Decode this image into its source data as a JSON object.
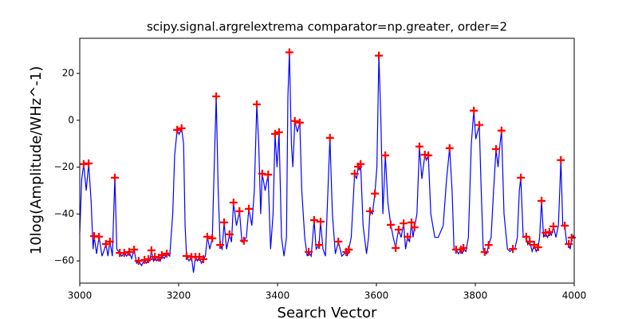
{
  "chart_data": {
    "type": "line",
    "title": "scipy.signal.argrelextrema comparator=np.greater, order=2",
    "x_label": "Search Vector",
    "y_label": "10log(Amplitude/WHz^-1)",
    "xlim": [
      3000,
      4000
    ],
    "ylim": [
      -69.5,
      35
    ],
    "xticks": [
      3000,
      3200,
      3400,
      3600,
      3800,
      4000
    ],
    "yticks": [
      {
        "value": -60,
        "label": "−60"
      },
      {
        "value": -40,
        "label": "−40"
      },
      {
        "value": -20,
        "label": "−20"
      },
      0,
      20
    ],
    "series": [
      {
        "type": "line",
        "color": "#0000ff",
        "x": [
          3000,
          3004,
          3008,
          3013,
          3018,
          3023,
          3027,
          3029,
          3034,
          3039,
          3045,
          3050,
          3053,
          3057,
          3061,
          3066,
          3071,
          3075,
          3081,
          3085,
          3090,
          3095,
          3100,
          3105,
          3110,
          3115,
          3119,
          3125,
          3131,
          3135,
          3139,
          3142,
          3145,
          3149,
          3152,
          3156,
          3160,
          3163,
          3166,
          3171,
          3176,
          3182,
          3188,
          3192,
          3197,
          3201,
          3206,
          3210,
          3213,
          3216,
          3221,
          3226,
          3230,
          3234,
          3238,
          3242,
          3246,
          3250,
          3254,
          3258,
          3263,
          3268,
          3272,
          3276,
          3280,
          3284,
          3288,
          3292,
          3297,
          3303,
          3307,
          3311,
          3317,
          3323,
          3328,
          3332,
          3337,
          3342,
          3348,
          3353,
          3358,
          3362,
          3366,
          3369,
          3375,
          3381,
          3386,
          3391,
          3395,
          3399,
          3403,
          3408,
          3413,
          3418,
          3421,
          3424,
          3428,
          3431,
          3435,
          3440,
          3445,
          3449,
          3455,
          3460,
          3463,
          3468,
          3474,
          3478,
          3484,
          3487,
          3492,
          3497,
          3502,
          3506,
          3511,
          3517,
          3523,
          3530,
          3539,
          3541,
          3544,
          3549,
          3556,
          3560,
          3563,
          3566,
          3568,
          3573,
          3580,
          3584,
          3587,
          3592,
          3597,
          3601,
          3605,
          3609,
          3613,
          3618,
          3623,
          3629,
          3634,
          3639,
          3642,
          3645,
          3650,
          3655,
          3659,
          3663,
          3667,
          3671,
          3674,
          3677,
          3682,
          3687,
          3692,
          3698,
          3701,
          3705,
          3710,
          3718,
          3725,
          3735,
          3742,
          3748,
          3753,
          3757,
          3761,
          3766,
          3771,
          3774,
          3776,
          3781,
          3786,
          3792,
          3797,
          3801,
          3808,
          3812,
          3816,
          3819,
          3823,
          3827,
          3832,
          3837,
          3842,
          3846,
          3850,
          3853,
          3858,
          3865,
          3870,
          3876,
          3880,
          3885,
          3889,
          3892,
          3897,
          3903,
          3906,
          3910,
          3915,
          3919,
          3923,
          3927,
          3930,
          3934,
          3938,
          3942,
          3946,
          3950,
          3954,
          3958,
          3963,
          3968,
          3973,
          3977,
          3981,
          3985,
          3989,
          3992,
          3995,
          4000
        ],
        "values": [
          -48,
          -25,
          -18.7,
          -30,
          -18.4,
          -35,
          -55,
          -49.4,
          -57,
          -49.7,
          -58,
          -55,
          -52.8,
          -58,
          -51.8,
          -58,
          -24.5,
          -55,
          -56.6,
          -58,
          -56.6,
          -58,
          -56.2,
          -59,
          -55.2,
          -61,
          -60,
          -62,
          -59.6,
          -61,
          -59.3,
          -60,
          -55.5,
          -60,
          -58.3,
          -60,
          -58.6,
          -60,
          -57.6,
          -59,
          -56.9,
          -58,
          -40,
          -15,
          -4.1,
          -6,
          -3.4,
          -10,
          -45,
          -57.9,
          -60,
          -58.3,
          -65,
          -58.3,
          -60,
          -58.3,
          -61,
          -59.3,
          -58,
          -49.7,
          -55,
          -50.4,
          -20,
          10.2,
          -30,
          -53.2,
          -55,
          -43.6,
          -55,
          -48.7,
          -52,
          -35.1,
          -45,
          -38.8,
          -52,
          -51.4,
          -50,
          -37.8,
          -45,
          -30,
          6.8,
          -10,
          -40,
          -22.8,
          -30,
          -23.2,
          -55,
          -40,
          -5.8,
          -20,
          -5.1,
          -50,
          -58,
          -50,
          10,
          29,
          -10,
          -20,
          -0.3,
          -5,
          -1,
          -30,
          -50,
          -58,
          -56.2,
          -58,
          -42.6,
          -55,
          -53.2,
          -43.3,
          -55,
          -58,
          -30,
          -7.5,
          -40,
          -57,
          -51.8,
          -58,
          -56.2,
          -58,
          -55.2,
          -50,
          -22.8,
          -25,
          -19.8,
          -21,
          -18.7,
          -45,
          -57,
          -50,
          -38.8,
          -40,
          -31.3,
          -20,
          27.6,
          0,
          -40,
          -15,
          -35,
          -44.6,
          -50,
          -54.5,
          -50,
          -46.7,
          -50,
          -44,
          -55,
          -49.7,
          -52,
          -43.6,
          -50,
          -45.7,
          -40,
          -11.2,
          -25,
          -14.7,
          -17,
          -15,
          -40,
          -50,
          -50,
          -45,
          -25,
          -11.9,
          -30,
          -55,
          -55.2,
          -57,
          -55.2,
          -57,
          -54.5,
          -56,
          -50,
          -10,
          4.1,
          -8,
          -2,
          -30,
          -55,
          -56.2,
          -57,
          -53.2,
          -50,
          -30,
          -12.3,
          -20,
          -10,
          -4.4,
          -40,
          -55,
          -56,
          -54.9,
          -55,
          -50,
          -30,
          -24.5,
          -50,
          -49.7,
          -53,
          -51.8,
          -56,
          -53.2,
          -56,
          -54.2,
          -50,
          -34.4,
          -50,
          -48,
          -50,
          -47.7,
          -49,
          -45.3,
          -50,
          -45,
          -17,
          -45,
          -45,
          -53,
          -52.8,
          -55,
          -50.1,
          -49
        ]
      },
      {
        "type": "scatter",
        "color": "#ff0000",
        "x": [
          3008,
          3018,
          3029,
          3039,
          3053,
          3061,
          3071,
          3081,
          3090,
          3100,
          3110,
          3119,
          3131,
          3139,
          3145,
          3152,
          3160,
          3166,
          3176,
          3197,
          3206,
          3216,
          3226,
          3234,
          3242,
          3250,
          3258,
          3268,
          3276,
          3284,
          3292,
          3303,
          3311,
          3323,
          3332,
          3342,
          3358,
          3369,
          3381,
          3395,
          3403,
          3424,
          3435,
          3445,
          3463,
          3474,
          3484,
          3487,
          3506,
          3523,
          3539,
          3544,
          3556,
          3563,
          3568,
          3587,
          3597,
          3605,
          3618,
          3629,
          3639,
          3645,
          3655,
          3663,
          3671,
          3677,
          3687,
          3698,
          3705,
          3748,
          3761,
          3771,
          3776,
          3797,
          3808,
          3819,
          3827,
          3842,
          3853,
          3876,
          3892,
          3903,
          3910,
          3919,
          3927,
          3934,
          3942,
          3950,
          3958,
          3973,
          3981,
          3989,
          3995
        ],
        "values": [
          -18.7,
          -18.4,
          -49.4,
          -49.7,
          -52.8,
          -51.8,
          -24.5,
          -56.6,
          -56.6,
          -56.2,
          -55.2,
          -60,
          -59.6,
          -59.3,
          -55.5,
          -58.3,
          -58.6,
          -57.6,
          -56.9,
          -4.1,
          -3.4,
          -57.9,
          -58.3,
          -58.3,
          -58.3,
          -59.3,
          -49.7,
          -50.4,
          10.2,
          -53.2,
          -43.6,
          -48.7,
          -35.1,
          -38.8,
          -51.4,
          -37.8,
          6.8,
          -22.8,
          -23.2,
          -5.8,
          -5.1,
          29,
          -0.3,
          -1,
          -56.2,
          -42.6,
          -53.2,
          -43.3,
          -7.5,
          -51.8,
          -56.2,
          -55.2,
          -22.8,
          -19.8,
          -18.7,
          -38.8,
          -31.3,
          27.6,
          -15,
          -44.6,
          -54.5,
          -46.7,
          -44,
          -49.7,
          -43.6,
          -45.7,
          -11.2,
          -14.7,
          -15,
          -11.9,
          -55.2,
          -55.2,
          -54.5,
          4.1,
          -2,
          -56.2,
          -53.2,
          -12.3,
          -4.4,
          -54.9,
          -24.5,
          -49.7,
          -51.8,
          -53.2,
          -54.2,
          -34.4,
          -48,
          -47.7,
          -45.3,
          -17,
          -45,
          -52.8,
          -50.1
        ]
      }
    ]
  }
}
